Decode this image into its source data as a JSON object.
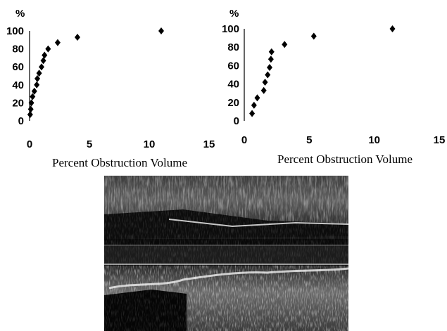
{
  "chart_data": [
    {
      "type": "scatter",
      "title": "",
      "xlabel": "Percent Obstruction Volume",
      "ylabel": "%",
      "xlim": [
        0,
        15
      ],
      "ylim": [
        0,
        100
      ],
      "x_ticks": [
        "0",
        "5",
        "10",
        "15"
      ],
      "y_ticks": [
        "0",
        "20",
        "40",
        "60",
        "80",
        "100"
      ],
      "grid": false,
      "marker": "diamond",
      "color": "#000000",
      "points": [
        {
          "x": 0.05,
          "y": 7
        },
        {
          "x": 0.1,
          "y": 13
        },
        {
          "x": 0.15,
          "y": 20
        },
        {
          "x": 0.25,
          "y": 27
        },
        {
          "x": 0.4,
          "y": 33
        },
        {
          "x": 0.6,
          "y": 40
        },
        {
          "x": 0.65,
          "y": 47
        },
        {
          "x": 0.8,
          "y": 53
        },
        {
          "x": 1.0,
          "y": 60
        },
        {
          "x": 1.15,
          "y": 67
        },
        {
          "x": 1.25,
          "y": 73
        },
        {
          "x": 1.55,
          "y": 80
        },
        {
          "x": 2.35,
          "y": 87
        },
        {
          "x": 4.0,
          "y": 93
        },
        {
          "x": 11.0,
          "y": 100
        }
      ]
    },
    {
      "type": "scatter",
      "title": "",
      "xlabel": "Percent Obstruction Volume",
      "ylabel": "%",
      "xlim": [
        0,
        15
      ],
      "ylim": [
        0,
        100
      ],
      "x_ticks": [
        "0",
        "5",
        "10",
        "15"
      ],
      "y_ticks": [
        "0",
        "20",
        "40",
        "60",
        "80",
        "100"
      ],
      "grid": false,
      "marker": "diamond",
      "color": "#000000",
      "points": [
        {
          "x": 0.6,
          "y": 8
        },
        {
          "x": 0.75,
          "y": 17
        },
        {
          "x": 1.0,
          "y": 25
        },
        {
          "x": 1.5,
          "y": 33
        },
        {
          "x": 1.6,
          "y": 42
        },
        {
          "x": 1.8,
          "y": 50
        },
        {
          "x": 1.95,
          "y": 58
        },
        {
          "x": 2.05,
          "y": 67
        },
        {
          "x": 2.1,
          "y": 75
        },
        {
          "x": 3.1,
          "y": 83
        },
        {
          "x": 5.35,
          "y": 92
        },
        {
          "x": 11.4,
          "y": 100
        }
      ]
    }
  ],
  "ultrasound_image": {
    "description_color": "#1a1a1a"
  }
}
